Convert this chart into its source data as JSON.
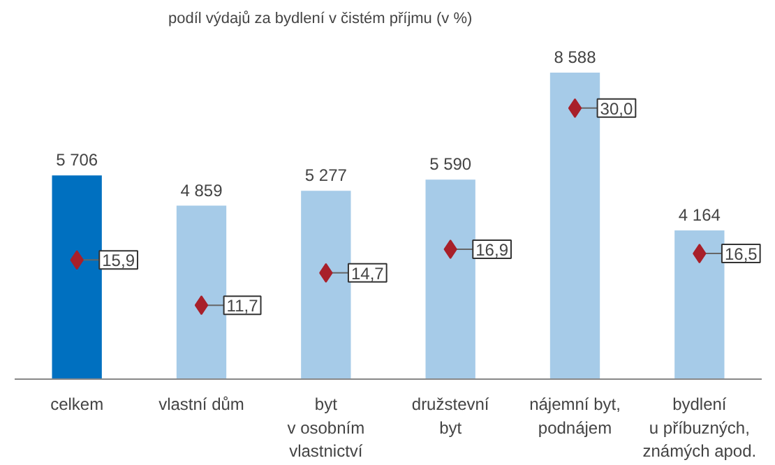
{
  "chart_data": {
    "type": "bar",
    "subtitle": "podíl výdajů za bydlení v čistém příjmu (v %)",
    "categories": [
      "celkem",
      "vlastní dům",
      "byt\nv osobním\nvlastnictví",
      "družstevní\nbyt",
      "nájemní byt,\npodnájem",
      "bydlení\nu příbuzných,\nznámých apod."
    ],
    "data_labels": true,
    "grid": false,
    "series": [
      {
        "colors": [
          "#0070c0",
          "#a6cbe8",
          "#a6cbe8",
          "#a6cbe8",
          "#a6cbe8",
          "#a6cbe8"
        ],
        "values": [
          5706,
          4859,
          5277,
          5590,
          8588,
          4164
        ],
        "value_labels": [
          "5 706",
          "4 859",
          "5 277",
          "5 590",
          "8 588",
          "4 164"
        ]
      },
      {
        "type": "scatter",
        "axis": "y2",
        "color": "#a8202a",
        "marker": "diamond",
        "values": [
          15.9,
          11.7,
          14.7,
          16.9,
          30.0,
          16.5
        ],
        "value_labels": [
          "15,9",
          "11,7",
          "14,7",
          "16,9",
          "30,0",
          "16,5"
        ]
      }
    ]
  }
}
